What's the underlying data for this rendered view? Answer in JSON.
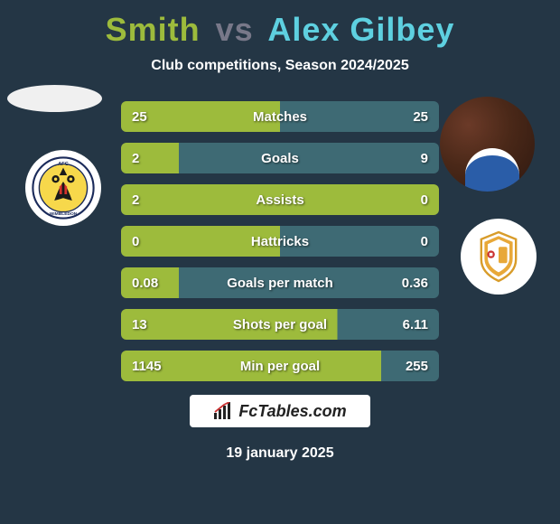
{
  "header": {
    "player1": "Smith",
    "vs": "vs",
    "player2": "Alex Gilbey",
    "title_fontsize": 36,
    "player1_color": "#9dbb3c",
    "vs_color": "#787889",
    "player2_color": "#5ed0e0",
    "subtitle": "Club competitions, Season 2024/2025",
    "subtitle_color": "#ffffff",
    "subtitle_fontsize": 16
  },
  "background_color": "#243645",
  "row_defaults": {
    "height": 34,
    "border_radius": 6,
    "fontsize": 15,
    "text_color": "#ffffff",
    "left_color": "#9dbb3c",
    "right_color": "#3e6a74",
    "container_width": 352
  },
  "rows": [
    {
      "label": "Matches",
      "left": "25",
      "right": "25",
      "left_pct": 50.0,
      "right_pct": 50.0
    },
    {
      "label": "Goals",
      "left": "2",
      "right": "9",
      "left_pct": 18.2,
      "right_pct": 81.8
    },
    {
      "label": "Assists",
      "left": "2",
      "right": "0",
      "left_pct": 100.0,
      "right_pct": 0.0
    },
    {
      "label": "Hattricks",
      "left": "0",
      "right": "0",
      "left_pct": 50.0,
      "right_pct": 50.0
    },
    {
      "label": "Goals per match",
      "left": "0.08",
      "right": "0.36",
      "left_pct": 18.2,
      "right_pct": 81.8
    },
    {
      "label": "Shots per goal",
      "left": "13",
      "right": "6.11",
      "left_pct": 68.0,
      "right_pct": 32.0
    },
    {
      "label": "Min per goal",
      "left": "1145",
      "right": "255",
      "left_pct": 81.8,
      "right_pct": 18.2
    }
  ],
  "badges": {
    "left_club": "afc-wimbledon",
    "right_club": "mk-dons"
  },
  "watermark": {
    "text": "FcTables.com",
    "icon": "bar-chart-icon"
  },
  "date": "19 january 2025"
}
